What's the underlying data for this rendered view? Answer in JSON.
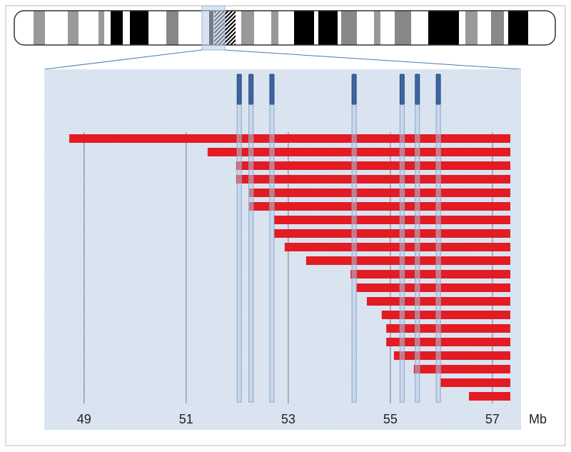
{
  "chart_data": {
    "type": "range-bar",
    "x_unit": "Mb",
    "xlim": [
      48.22,
      57.56
    ],
    "xticks": [
      49,
      51,
      53,
      55,
      57
    ],
    "grid": true,
    "starts": [
      48.71,
      51.42,
      51.98,
      51.98,
      52.23,
      52.23,
      52.72,
      52.72,
      52.93,
      53.35,
      54.22,
      54.34,
      54.54,
      54.83,
      54.92,
      54.92,
      55.07,
      55.46,
      55.98,
      56.54
    ],
    "ends": [
      57.35,
      57.35,
      57.35,
      57.35,
      57.35,
      57.35,
      57.35,
      57.35,
      57.35,
      57.35,
      57.35,
      57.35,
      57.35,
      57.35,
      57.35,
      57.35,
      57.35,
      57.35,
      57.35,
      57.35
    ],
    "color": "#e31b23",
    "markers": [
      52.04,
      52.27,
      52.68,
      54.29,
      55.23,
      55.53,
      55.94
    ],
    "marker_color": "#3d659e"
  }
}
